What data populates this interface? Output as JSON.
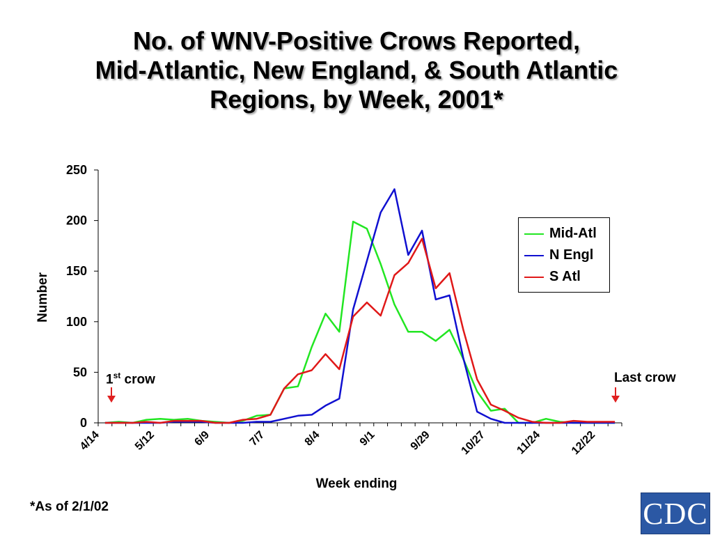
{
  "title": {
    "line1": "No. of WNV-Positive Crows Reported,",
    "line2": "Mid-Atlantic, New England, & South Atlantic",
    "line3": "Regions, by Week, 2001*"
  },
  "footnote": "*As of 2/1/02",
  "annotations": {
    "first": {
      "num": "1",
      "sup": "st",
      "rest": " crow"
    },
    "last": "Last crow",
    "arrow_color": "#e02020"
  },
  "logo_text": "CDC",
  "chart_data": {
    "type": "line",
    "xlabel": "Week ending",
    "ylabel": "Number",
    "ylim": [
      0,
      250
    ],
    "yticks": [
      0,
      50,
      100,
      150,
      200,
      250
    ],
    "x_tick_labels": [
      "4/14",
      "5/12",
      "6/9",
      "7/7",
      "8/4",
      "9/1",
      "9/29",
      "10/27",
      "11/24",
      "12/22"
    ],
    "x_tick_every_weeks": 4,
    "weeks": 38,
    "legend_position": "right",
    "series": [
      {
        "name": "Mid-Atl",
        "color": "#22e622",
        "values": [
          0,
          1,
          0,
          3,
          4,
          3,
          4,
          2,
          1,
          0,
          2,
          7,
          8,
          34,
          36,
          75,
          108,
          90,
          199,
          192,
          157,
          117,
          90,
          90,
          81,
          92,
          63,
          31,
          12,
          14,
          0,
          0,
          4,
          1,
          0,
          0,
          0,
          0
        ]
      },
      {
        "name": "N Engl",
        "color": "#1010d0",
        "values": [
          0,
          0,
          0,
          0,
          0,
          1,
          1,
          1,
          0,
          0,
          0,
          1,
          1,
          4,
          7,
          8,
          17,
          24,
          112,
          160,
          208,
          231,
          166,
          190,
          122,
          126,
          64,
          11,
          4,
          0,
          0,
          0,
          0,
          0,
          0,
          0,
          0,
          0
        ]
      },
      {
        "name": "S Atl",
        "color": "#e01818",
        "values": [
          0,
          0,
          0,
          1,
          0,
          2,
          2,
          2,
          0,
          0,
          3,
          4,
          8,
          34,
          48,
          52,
          68,
          53,
          105,
          119,
          106,
          146,
          158,
          182,
          133,
          148,
          92,
          43,
          18,
          12,
          5,
          1,
          0,
          0,
          2,
          1,
          1,
          1
        ]
      }
    ]
  }
}
